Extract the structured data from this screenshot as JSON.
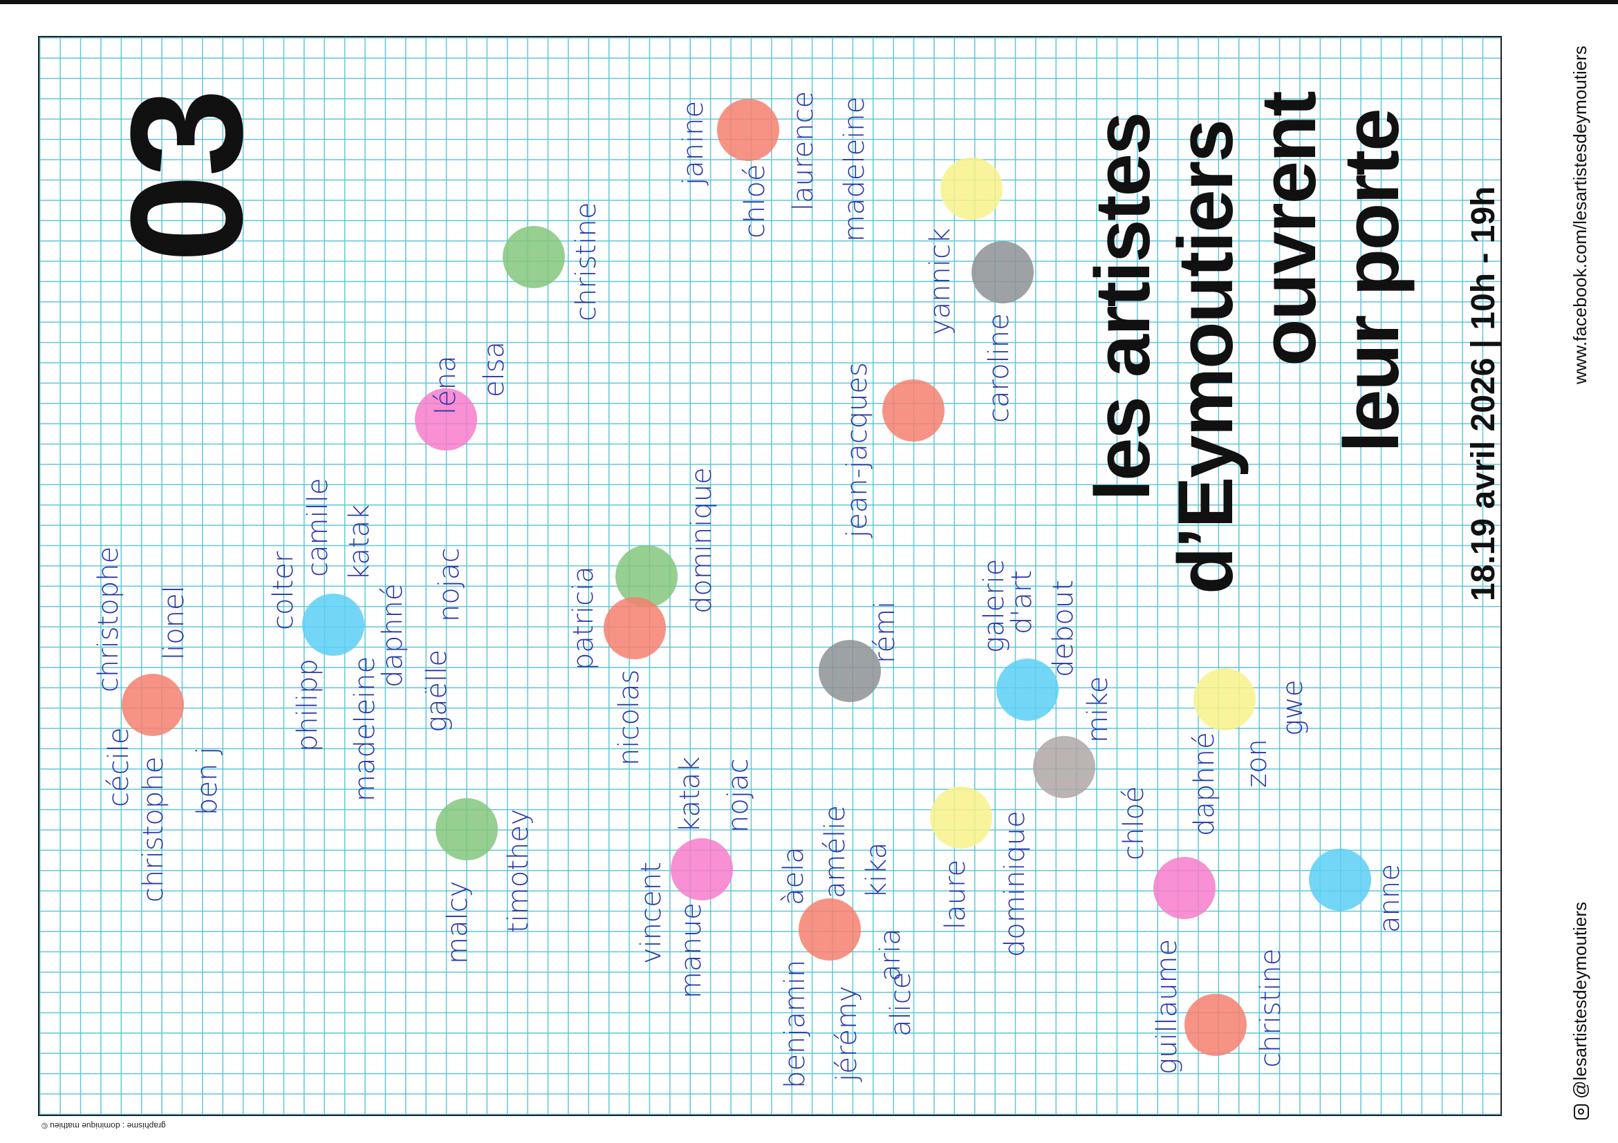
{
  "poster": {
    "number": "03",
    "title_lines": [
      "les artistes",
      "d’Eymoutiers",
      "ouvrent",
      "leur porte"
    ],
    "dates": "18.19 avril 2026 | 10h - 19h",
    "facebook_url": "www.facebook.com/lesartistesdeymoutiers",
    "instagram_handle": "@lesartistesdeymoutiers",
    "credit": "graphisme : dominique mathieu ©"
  },
  "colors": {
    "grid": "#5fc6d9",
    "ink": "#2a35a8",
    "red": "#f6806f",
    "green": "#84c77c",
    "yellow": "#f8f28a",
    "grey": "#8e9295",
    "blue": "#5ccff4",
    "pink": "#f77ccb",
    "taupe": "#b0a6a6"
  },
  "names": {
    "c1": [
      "cécile",
      "christophe",
      "christophe",
      "lionel",
      "ben j"
    ],
    "c2": [
      "colter",
      "camille",
      "katak",
      "philipp",
      "madeleine",
      "daphné",
      "gaëlle",
      "nojac"
    ],
    "c3": [
      "malcy",
      "timothey"
    ],
    "c4": [
      "léna",
      "elsa"
    ],
    "c5": [
      "christine"
    ],
    "c6": [
      "patricia",
      "dominique",
      "nicolas"
    ],
    "c7": [
      "vincent",
      "manue",
      "katak",
      "nojac"
    ],
    "c8": [
      "àela",
      "amélie",
      "kika",
      "benjamin",
      "jérémy",
      "alice",
      "aria"
    ],
    "c9": [
      "janine",
      "chloé",
      "laurence",
      "madeleine"
    ],
    "c10": [
      "jean-jacques"
    ],
    "c11": [
      "rémi"
    ],
    "c12": [
      "laure",
      "dominique"
    ],
    "c13": [
      "yannick",
      "caroline"
    ],
    "c14": [
      "galerie",
      "d'art",
      "debout"
    ],
    "c15": [
      "mike"
    ],
    "c16": [
      "chloé",
      "daphné",
      "zon",
      "gwe",
      "guillaume",
      "christine"
    ],
    "c17": [
      "anne"
    ]
  }
}
